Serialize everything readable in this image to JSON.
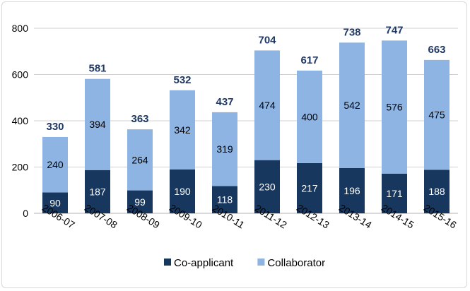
{
  "chart_data": {
    "type": "bar",
    "stacked": true,
    "categories": [
      "2006-07",
      "2007-08",
      "2008-09",
      "2009-10",
      "2010-11",
      "2011-12",
      "2012-13",
      "2013-14",
      "2014-15",
      "2015-16"
    ],
    "series": [
      {
        "name": "Co-applicant",
        "values": [
          90,
          187,
          99,
          190,
          118,
          230,
          217,
          196,
          171,
          188
        ],
        "color": "#17375e"
      },
      {
        "name": "Collaborator",
        "values": [
          240,
          394,
          264,
          342,
          319,
          474,
          400,
          542,
          576,
          475
        ],
        "color": "#8db4e2"
      }
    ],
    "totals": [
      330,
      581,
      363,
      532,
      437,
      704,
      617,
      738,
      747,
      663
    ],
    "total_label_color": "#1f3864",
    "ylim": [
      0,
      800
    ],
    "yticks": [
      "0",
      "200",
      "400",
      "600",
      "800"
    ],
    "grid": true,
    "legend_position": "bottom"
  }
}
